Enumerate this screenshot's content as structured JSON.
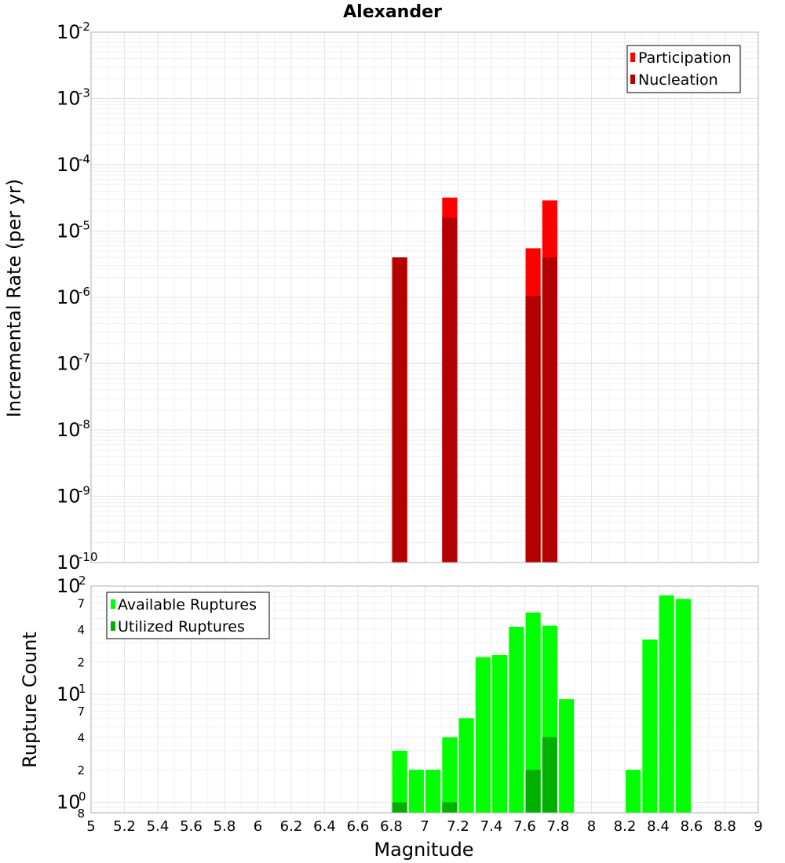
{
  "chart_data": [
    {
      "type": "bar",
      "title": "Alexander",
      "ylabel": "Incremental Rate (per yr)",
      "xlabel": "",
      "xlim": [
        5,
        9
      ],
      "ylim": [
        1e-10,
        0.01
      ],
      "yscale": "log",
      "grid": true,
      "legend_position": "top-right",
      "y_tick_labels": [
        {
          "base": "10",
          "exp": "-2",
          "value": 0.01
        },
        {
          "base": "10",
          "exp": "-3",
          "value": 0.001
        },
        {
          "base": "10",
          "exp": "-4",
          "value": 0.0001
        },
        {
          "base": "10",
          "exp": "-5",
          "value": 1e-05
        },
        {
          "base": "10",
          "exp": "-6",
          "value": 1e-06
        },
        {
          "base": "10",
          "exp": "-7",
          "value": 1e-07
        },
        {
          "base": "10",
          "exp": "-8",
          "value": 1e-08
        },
        {
          "base": "10",
          "exp": "-9",
          "value": 1e-09
        },
        {
          "base": "10",
          "exp": "-10",
          "value": 1e-10
        }
      ],
      "series": [
        {
          "name": "Participation",
          "color": "#ff0000",
          "points": [
            {
              "x": 6.85,
              "y": 4e-06
            },
            {
              "x": 7.15,
              "y": 3.2e-05
            },
            {
              "x": 7.65,
              "y": 5.5e-06
            },
            {
              "x": 7.75,
              "y": 2.9e-05
            }
          ]
        },
        {
          "name": "Nucleation",
          "color": "#b30000",
          "points": [
            {
              "x": 6.85,
              "y": 4e-06
            },
            {
              "x": 7.15,
              "y": 1.6e-05
            },
            {
              "x": 7.65,
              "y": 1.05e-06
            },
            {
              "x": 7.75,
              "y": 4e-06
            }
          ]
        }
      ]
    },
    {
      "type": "bar",
      "title": "",
      "ylabel": "Rupture Count",
      "xlabel": "Magnitude",
      "xlim": [
        5,
        9
      ],
      "ylim": [
        0.8,
        100
      ],
      "yscale": "log",
      "grid": true,
      "legend_position": "top-left",
      "x_tick_labels": [
        "5",
        "5.2",
        "5.4",
        "5.6",
        "5.8",
        "6",
        "6.2",
        "6.4",
        "6.6",
        "6.8",
        "7",
        "7.2",
        "7.4",
        "7.6",
        "7.8",
        "8",
        "8.2",
        "8.4",
        "8.6",
        "8.8",
        "9"
      ],
      "y_tick_labels": [
        {
          "base": "10",
          "exp": "2",
          "value": 100
        },
        {
          "base": "10",
          "exp": "1",
          "value": 10
        },
        {
          "base": "10",
          "exp": "0",
          "value": 1
        }
      ],
      "y_minor_labels": [
        {
          "label": "7",
          "value": 70
        },
        {
          "label": "4",
          "value": 40
        },
        {
          "label": "2",
          "value": 20
        },
        {
          "label": "7",
          "value": 7
        },
        {
          "label": "4",
          "value": 4
        },
        {
          "label": "2",
          "value": 2
        },
        {
          "label": "8",
          "value": 0.8
        }
      ],
      "series": [
        {
          "name": "Available Ruptures",
          "color": "#00ff00",
          "points": [
            {
              "x": 6.85,
              "y": 3
            },
            {
              "x": 6.95,
              "y": 2
            },
            {
              "x": 7.05,
              "y": 2
            },
            {
              "x": 7.15,
              "y": 4
            },
            {
              "x": 7.25,
              "y": 6
            },
            {
              "x": 7.35,
              "y": 22
            },
            {
              "x": 7.45,
              "y": 23
            },
            {
              "x": 7.55,
              "y": 42
            },
            {
              "x": 7.65,
              "y": 57
            },
            {
              "x": 7.75,
              "y": 43
            },
            {
              "x": 7.85,
              "y": 9
            },
            {
              "x": 8.25,
              "y": 2
            },
            {
              "x": 8.35,
              "y": 32
            },
            {
              "x": 8.45,
              "y": 82
            },
            {
              "x": 8.55,
              "y": 76
            }
          ]
        },
        {
          "name": "Utilized Ruptures",
          "color": "#00b000",
          "points": [
            {
              "x": 6.85,
              "y": 1
            },
            {
              "x": 7.15,
              "y": 1
            },
            {
              "x": 7.65,
              "y": 2
            },
            {
              "x": 7.75,
              "y": 4
            }
          ]
        }
      ]
    }
  ]
}
